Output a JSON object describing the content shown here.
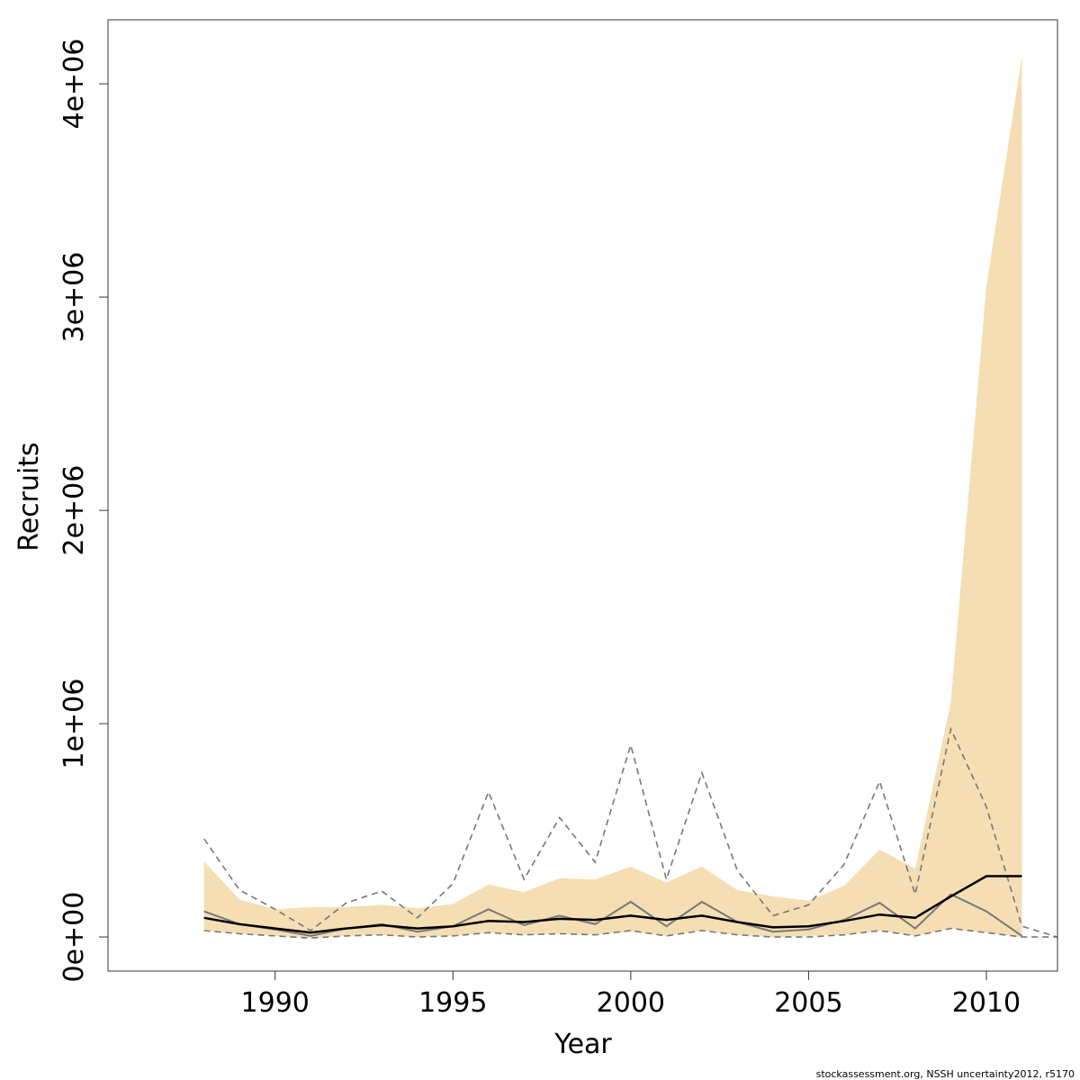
{
  "chart_data": {
    "type": "line",
    "xlabel": "Year",
    "ylabel": "Recruits",
    "xlim": [
      1985.3,
      2012
    ],
    "ylim": [
      -160000,
      4300000
    ],
    "x_ticks": [
      1990,
      1995,
      2000,
      2005,
      2010
    ],
    "x_tick_labels": [
      "1990",
      "1995",
      "2000",
      "2005",
      "2010"
    ],
    "y_ticks": [
      0,
      1000000,
      2000000,
      3000000,
      4000000
    ],
    "y_tick_labels": [
      "0e+00",
      "1e+06",
      "2e+06",
      "3e+06",
      "4e+06"
    ],
    "caption": "stockassessment.org, NSSH  uncertainty2012, r5170",
    "colors": {
      "band": "#f5deb3",
      "median": "#000000",
      "reference": "#777777",
      "dashed": "#777777"
    },
    "band": {
      "name": "",
      "x": [
        1988,
        1989,
        1990,
        1991,
        1992,
        1993,
        1994,
        1995,
        1996,
        1997,
        1998,
        1999,
        2000,
        2001,
        2002,
        2003,
        2004,
        2005,
        2006,
        2007,
        2008,
        2009,
        2010,
        2011
      ],
      "upper": [
        355000,
        175000,
        130000,
        140000,
        140000,
        150000,
        135000,
        155000,
        245000,
        210000,
        275000,
        270000,
        330000,
        255000,
        330000,
        220000,
        190000,
        170000,
        240000,
        410000,
        320000,
        1100000,
        3050000,
        4130000
      ],
      "lower": [
        30000,
        15000,
        5000,
        -5000,
        5000,
        10000,
        0,
        5000,
        20000,
        10000,
        15000,
        10000,
        25000,
        5000,
        30000,
        10000,
        0,
        5000,
        10000,
        30000,
        5000,
        40000,
        20000,
        0
      ]
    },
    "series": [
      {
        "name": "",
        "style": "solid-thick",
        "x": [
          1988,
          1989,
          1990,
          1991,
          1992,
          1993,
          1994,
          1995,
          1996,
          1997,
          1998,
          1999,
          2000,
          2001,
          2002,
          2003,
          2004,
          2005,
          2006,
          2007,
          2008,
          2009,
          2010,
          2011
        ],
        "values": [
          90000,
          60000,
          40000,
          20000,
          40000,
          55000,
          40000,
          50000,
          75000,
          70000,
          85000,
          80000,
          100000,
          80000,
          100000,
          70000,
          45000,
          50000,
          75000,
          105000,
          90000,
          190000,
          285000,
          285000
        ]
      },
      {
        "name": "",
        "style": "solid-thin",
        "x": [
          1988,
          1989,
          1990,
          1991,
          1992,
          1993,
          1994,
          1995,
          1996,
          1997,
          1998,
          1999,
          2000,
          2001,
          2002,
          2003,
          2004,
          2005,
          2006,
          2007,
          2008,
          2009,
          2010,
          2011
        ],
        "values": [
          120000,
          60000,
          35000,
          5000,
          40000,
          60000,
          25000,
          50000,
          130000,
          55000,
          100000,
          60000,
          165000,
          50000,
          165000,
          70000,
          25000,
          35000,
          80000,
          160000,
          40000,
          200000,
          120000,
          5000
        ]
      },
      {
        "name": "",
        "style": "dashed",
        "x": [
          1988,
          1989,
          1990,
          1991,
          1992,
          1993,
          1994,
          1995,
          1996,
          1997,
          1998,
          1999,
          2000,
          2001,
          2002,
          2003,
          2004,
          2005,
          2006,
          2007,
          2008,
          2009,
          2010,
          2011,
          2012
        ],
        "values": [
          460000,
          220000,
          130000,
          30000,
          160000,
          215000,
          90000,
          250000,
          680000,
          270000,
          560000,
          350000,
          900000,
          270000,
          770000,
          310000,
          100000,
          150000,
          340000,
          730000,
          200000,
          975000,
          610000,
          50000,
          0
        ]
      },
      {
        "name": "",
        "style": "dashed",
        "x": [
          1988,
          1989,
          1990,
          1991,
          1992,
          1993,
          1994,
          1995,
          1996,
          1997,
          1998,
          1999,
          2000,
          2001,
          2002,
          2003,
          2004,
          2005,
          2006,
          2007,
          2008,
          2009,
          2010,
          2011,
          2012
        ],
        "values": [
          30000,
          15000,
          5000,
          -5000,
          5000,
          10000,
          0,
          5000,
          20000,
          10000,
          15000,
          10000,
          30000,
          5000,
          30000,
          10000,
          0,
          0,
          10000,
          30000,
          5000,
          40000,
          20000,
          0,
          0
        ]
      }
    ]
  }
}
